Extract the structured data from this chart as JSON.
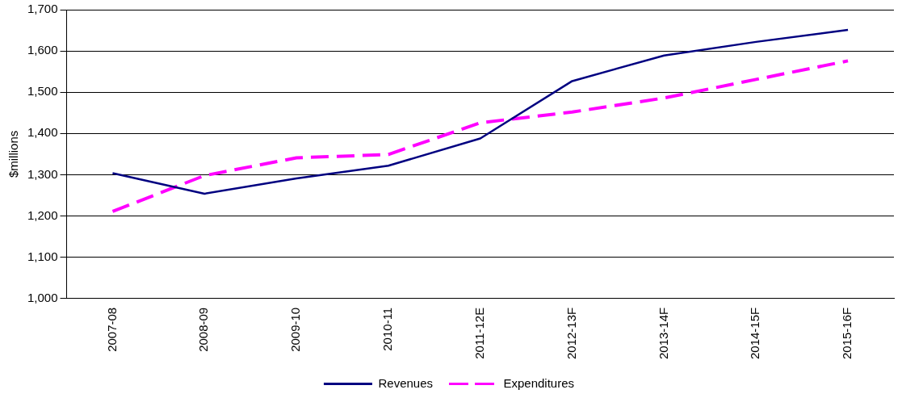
{
  "chart_data": {
    "type": "line",
    "ylabel": "$millions",
    "categories": [
      "2007-08",
      "2008-09",
      "2009-10",
      "2010-11",
      "2011-12E",
      "2012-13F",
      "2013-14F",
      "2014-15F",
      "2015-16F"
    ],
    "series": [
      {
        "name": "Revenues",
        "color": "#000080",
        "line_style": "solid",
        "values": [
          1304,
          1254,
          1291,
          1322,
          1388,
          1527,
          1589,
          1622,
          1651
        ]
      },
      {
        "name": "Expenditures",
        "color": "#ff00ff",
        "line_style": "dashed",
        "values": [
          1211,
          1298,
          1341,
          1349,
          1426,
          1452,
          1486,
          1531,
          1576
        ]
      }
    ],
    "ylim": [
      1000,
      1700
    ],
    "yticks": [
      {
        "value": 1000,
        "label": "1,000"
      },
      {
        "value": 1100,
        "label": "1,100"
      },
      {
        "value": 1200,
        "label": "1,200"
      },
      {
        "value": 1300,
        "label": "1,300"
      },
      {
        "value": 1400,
        "label": "1,400"
      },
      {
        "value": 1500,
        "label": "1,500"
      },
      {
        "value": 1600,
        "label": "1,600"
      },
      {
        "value": 1700,
        "label": "1,700"
      }
    ],
    "grid": "y",
    "legend": "bottom",
    "marker": "none"
  }
}
